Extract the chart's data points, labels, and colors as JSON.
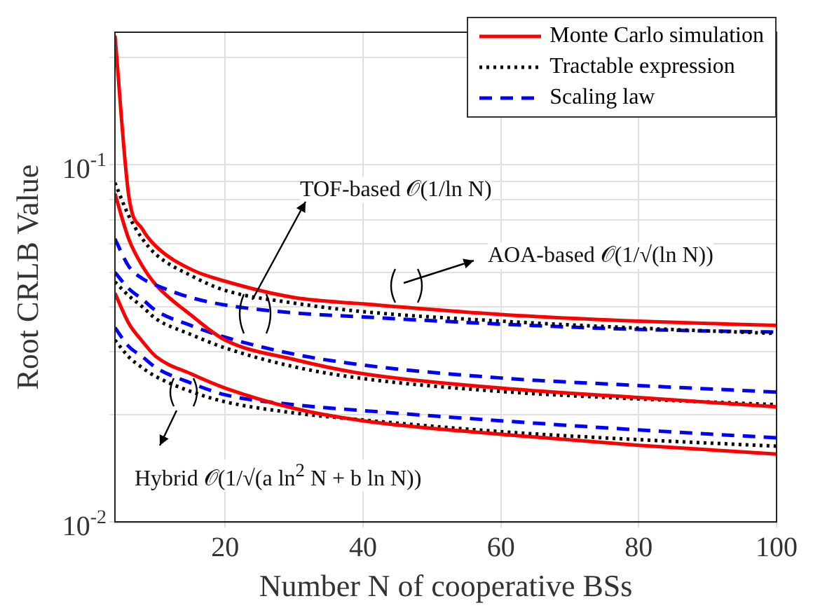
{
  "chart_data": {
    "type": "line",
    "xlabel": "Number N of cooperative BSs",
    "ylabel": "Root CRLB Value",
    "x": [
      4,
      6,
      8,
      10,
      15,
      20,
      30,
      40,
      60,
      80,
      100
    ],
    "series": [
      {
        "name": "Monte Carlo simulation",
        "color": "#ff0000",
        "line_style": "solid",
        "values": [
          0.23,
          0.082,
          0.066,
          0.059,
          0.051,
          0.0472,
          0.0425,
          0.0408,
          0.0381,
          0.0365,
          0.0355
        ]
      },
      {
        "name": "Tractable expression",
        "color": "#000000",
        "line_style": "dotted",
        "values": [
          0.089,
          0.072,
          0.062,
          0.056,
          0.049,
          0.0445,
          0.041,
          0.0388,
          0.0365,
          0.0349,
          0.0337
        ]
      },
      {
        "name": "Scaling law",
        "color": "#0000ff",
        "line_style": "dashed",
        "values": [
          0.062,
          0.052,
          0.048,
          0.046,
          0.0425,
          0.0405,
          0.0385,
          0.0375,
          0.0358,
          0.0346,
          0.034
        ]
      },
      {
        "color": "#ff0000",
        "line_style": "solid",
        "values": [
          0.083,
          0.062,
          0.052,
          0.046,
          0.038,
          0.0323,
          0.0285,
          0.026,
          0.0237,
          0.0223,
          0.021
        ]
      },
      {
        "color": "#000000",
        "line_style": "dotted",
        "values": [
          0.047,
          0.043,
          0.04,
          0.037,
          0.0335,
          0.0307,
          0.0272,
          0.0252,
          0.0232,
          0.0221,
          0.0213
        ]
      },
      {
        "color": "#0000ff",
        "line_style": "dashed",
        "values": [
          0.05,
          0.045,
          0.042,
          0.039,
          0.0355,
          0.0329,
          0.0295,
          0.0275,
          0.0253,
          0.0241,
          0.0231
        ]
      },
      {
        "color": "#ff0000",
        "line_style": "solid",
        "values": [
          0.0437,
          0.036,
          0.032,
          0.029,
          0.026,
          0.0237,
          0.0208,
          0.0192,
          0.0176,
          0.0164,
          0.0155
        ]
      },
      {
        "color": "#000000",
        "line_style": "dotted",
        "values": [
          0.0323,
          0.029,
          0.027,
          0.0255,
          0.0232,
          0.0217,
          0.0202,
          0.0193,
          0.0179,
          0.017,
          0.0163
        ]
      },
      {
        "color": "#0000ff",
        "line_style": "dashed",
        "values": [
          0.035,
          0.031,
          0.029,
          0.027,
          0.0245,
          0.0227,
          0.0213,
          0.0205,
          0.0192,
          0.0181,
          0.0172
        ]
      }
    ],
    "xlim": [
      4,
      100
    ],
    "xticks": [
      20,
      40,
      60,
      80,
      100
    ],
    "ylim": [
      0.01,
      0.235
    ],
    "log": "y",
    "yticks": [
      {
        "value": 0.01,
        "label": "10$^{-2}$"
      },
      {
        "value": 0.02,
        "label": null
      },
      {
        "value": 0.03,
        "label": null
      },
      {
        "value": 0.04,
        "label": null
      },
      {
        "value": 0.05,
        "label": null
      },
      {
        "value": 0.06,
        "label": null
      },
      {
        "value": 0.07,
        "label": null
      },
      {
        "value": 0.08,
        "label": null
      },
      {
        "value": 0.09,
        "label": null
      },
      {
        "value": 0.1,
        "label": "10$^{-1}$"
      },
      {
        "value": 0.2,
        "label": null
      }
    ],
    "grid": true,
    "legend": "top right",
    "marker": "none",
    "annotations": [
      "TOF-based 𝒪(1/ln N)",
      "AOA-based 𝒪(1/√(ln N))",
      "Hybrid 𝒪(1/√(a ln$^{2}$ N + b ln N))"
    ]
  }
}
